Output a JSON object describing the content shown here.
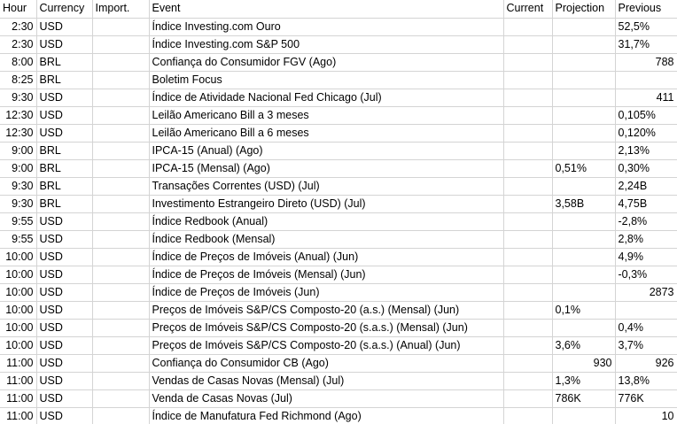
{
  "headers": {
    "hour": "Hour",
    "currency": "Currency",
    "importance": "Import.",
    "event": "Event",
    "current": "Current",
    "projection": "Projection",
    "previous": "Previous"
  },
  "rows": [
    {
      "hour": "2:30",
      "currency": "USD",
      "importance": "",
      "event": "Índice Investing.com Ouro",
      "current": "",
      "projection": "",
      "previous": "52,5%"
    },
    {
      "hour": "2:30",
      "currency": "USD",
      "importance": "",
      "event": "Índice Investing.com S&P 500",
      "current": "",
      "projection": "",
      "previous": "31,7%"
    },
    {
      "hour": "8:00",
      "currency": "BRL",
      "importance": "",
      "event": "Confiança do Consumidor FGV (Ago)",
      "current": "",
      "projection": "",
      "previous": "788"
    },
    {
      "hour": "8:25",
      "currency": "BRL",
      "importance": "",
      "event": "Boletim Focus",
      "current": "",
      "projection": "",
      "previous": ""
    },
    {
      "hour": "9:30",
      "currency": "USD",
      "importance": "",
      "event": "Índice de Atividade Nacional Fed Chicago (Jul)",
      "current": "",
      "projection": "",
      "previous": "411"
    },
    {
      "hour": "12:30",
      "currency": "USD",
      "importance": "",
      "event": "Leilão Americano Bill a 3 meses",
      "current": "",
      "projection": "",
      "previous": "0,105%"
    },
    {
      "hour": "12:30",
      "currency": "USD",
      "importance": "",
      "event": "Leilão Americano Bill a 6 meses",
      "current": "",
      "projection": "",
      "previous": "0,120%"
    },
    {
      "hour": "9:00",
      "currency": "BRL",
      "importance": "",
      "event": "IPCA-15 (Anual) (Ago)",
      "current": "",
      "projection": "",
      "previous": "2,13%"
    },
    {
      "hour": "9:00",
      "currency": "BRL",
      "importance": "",
      "event": "IPCA-15 (Mensal) (Ago)",
      "current": "",
      "projection": "0,51%",
      "previous": "0,30%"
    },
    {
      "hour": "9:30",
      "currency": "BRL",
      "importance": "",
      "event": "Transações Correntes (USD) (Jul)",
      "current": "",
      "projection": "",
      "previous": "2,24B"
    },
    {
      "hour": "9:30",
      "currency": "BRL",
      "importance": "",
      "event": "Investimento Estrangeiro Direto (USD) (Jul)",
      "current": "",
      "projection": "3,58B",
      "previous": "4,75B"
    },
    {
      "hour": "9:55",
      "currency": "USD",
      "importance": "",
      "event": "Índice Redbook (Anual)",
      "current": "",
      "projection": "",
      "previous": "-2,8%"
    },
    {
      "hour": "9:55",
      "currency": "USD",
      "importance": "",
      "event": "Índice Redbook (Mensal)",
      "current": "",
      "projection": "",
      "previous": "2,8%"
    },
    {
      "hour": "10:00",
      "currency": "USD",
      "importance": "",
      "event": "Índice de Preços de Imóveis (Anual) (Jun)",
      "current": "",
      "projection": "",
      "previous": "4,9%"
    },
    {
      "hour": "10:00",
      "currency": "USD",
      "importance": "",
      "event": "Índice de Preços de Imóveis (Mensal) (Jun)",
      "current": "",
      "projection": "",
      "previous": "-0,3%"
    },
    {
      "hour": "10:00",
      "currency": "USD",
      "importance": "",
      "event": "Índice de Preços de Imóveis (Jun)",
      "current": "",
      "projection": "",
      "previous": "2873"
    },
    {
      "hour": "10:00",
      "currency": "USD",
      "importance": "",
      "event": "Preços de Imóveis S&P/CS Composto-20 (a.s.) (Mensal) (Jun)",
      "current": "",
      "projection": "0,1%",
      "previous": ""
    },
    {
      "hour": "10:00",
      "currency": "USD",
      "importance": "",
      "event": "Preços de Imóveis S&P/CS Composto-20 (s.a.s.) (Mensal) (Jun)",
      "current": "",
      "projection": "",
      "previous": "0,4%"
    },
    {
      "hour": "10:00",
      "currency": "USD",
      "importance": "",
      "event": "Preços de Imóveis S&P/CS Composto-20 (s.a.s.) (Anual) (Jun)",
      "current": "",
      "projection": "3,6%",
      "previous": "3,7%"
    },
    {
      "hour": "11:00",
      "currency": "USD",
      "importance": "",
      "event": "Confiança do Consumidor CB (Ago)",
      "current": "",
      "projection": "930",
      "previous": "926"
    },
    {
      "hour": "11:00",
      "currency": "USD",
      "importance": "",
      "event": "Vendas de Casas Novas (Mensal) (Jul)",
      "current": "",
      "projection": "1,3%",
      "previous": "13,8%"
    },
    {
      "hour": "11:00",
      "currency": "USD",
      "importance": "",
      "event": "Venda de Casas Novas (Jul)",
      "current": "",
      "projection": "786K",
      "previous": "776K"
    },
    {
      "hour": "11:00",
      "currency": "USD",
      "importance": "",
      "event": "Índice de Manufatura Fed Richmond (Ago)",
      "current": "",
      "projection": "",
      "previous": "10"
    }
  ]
}
